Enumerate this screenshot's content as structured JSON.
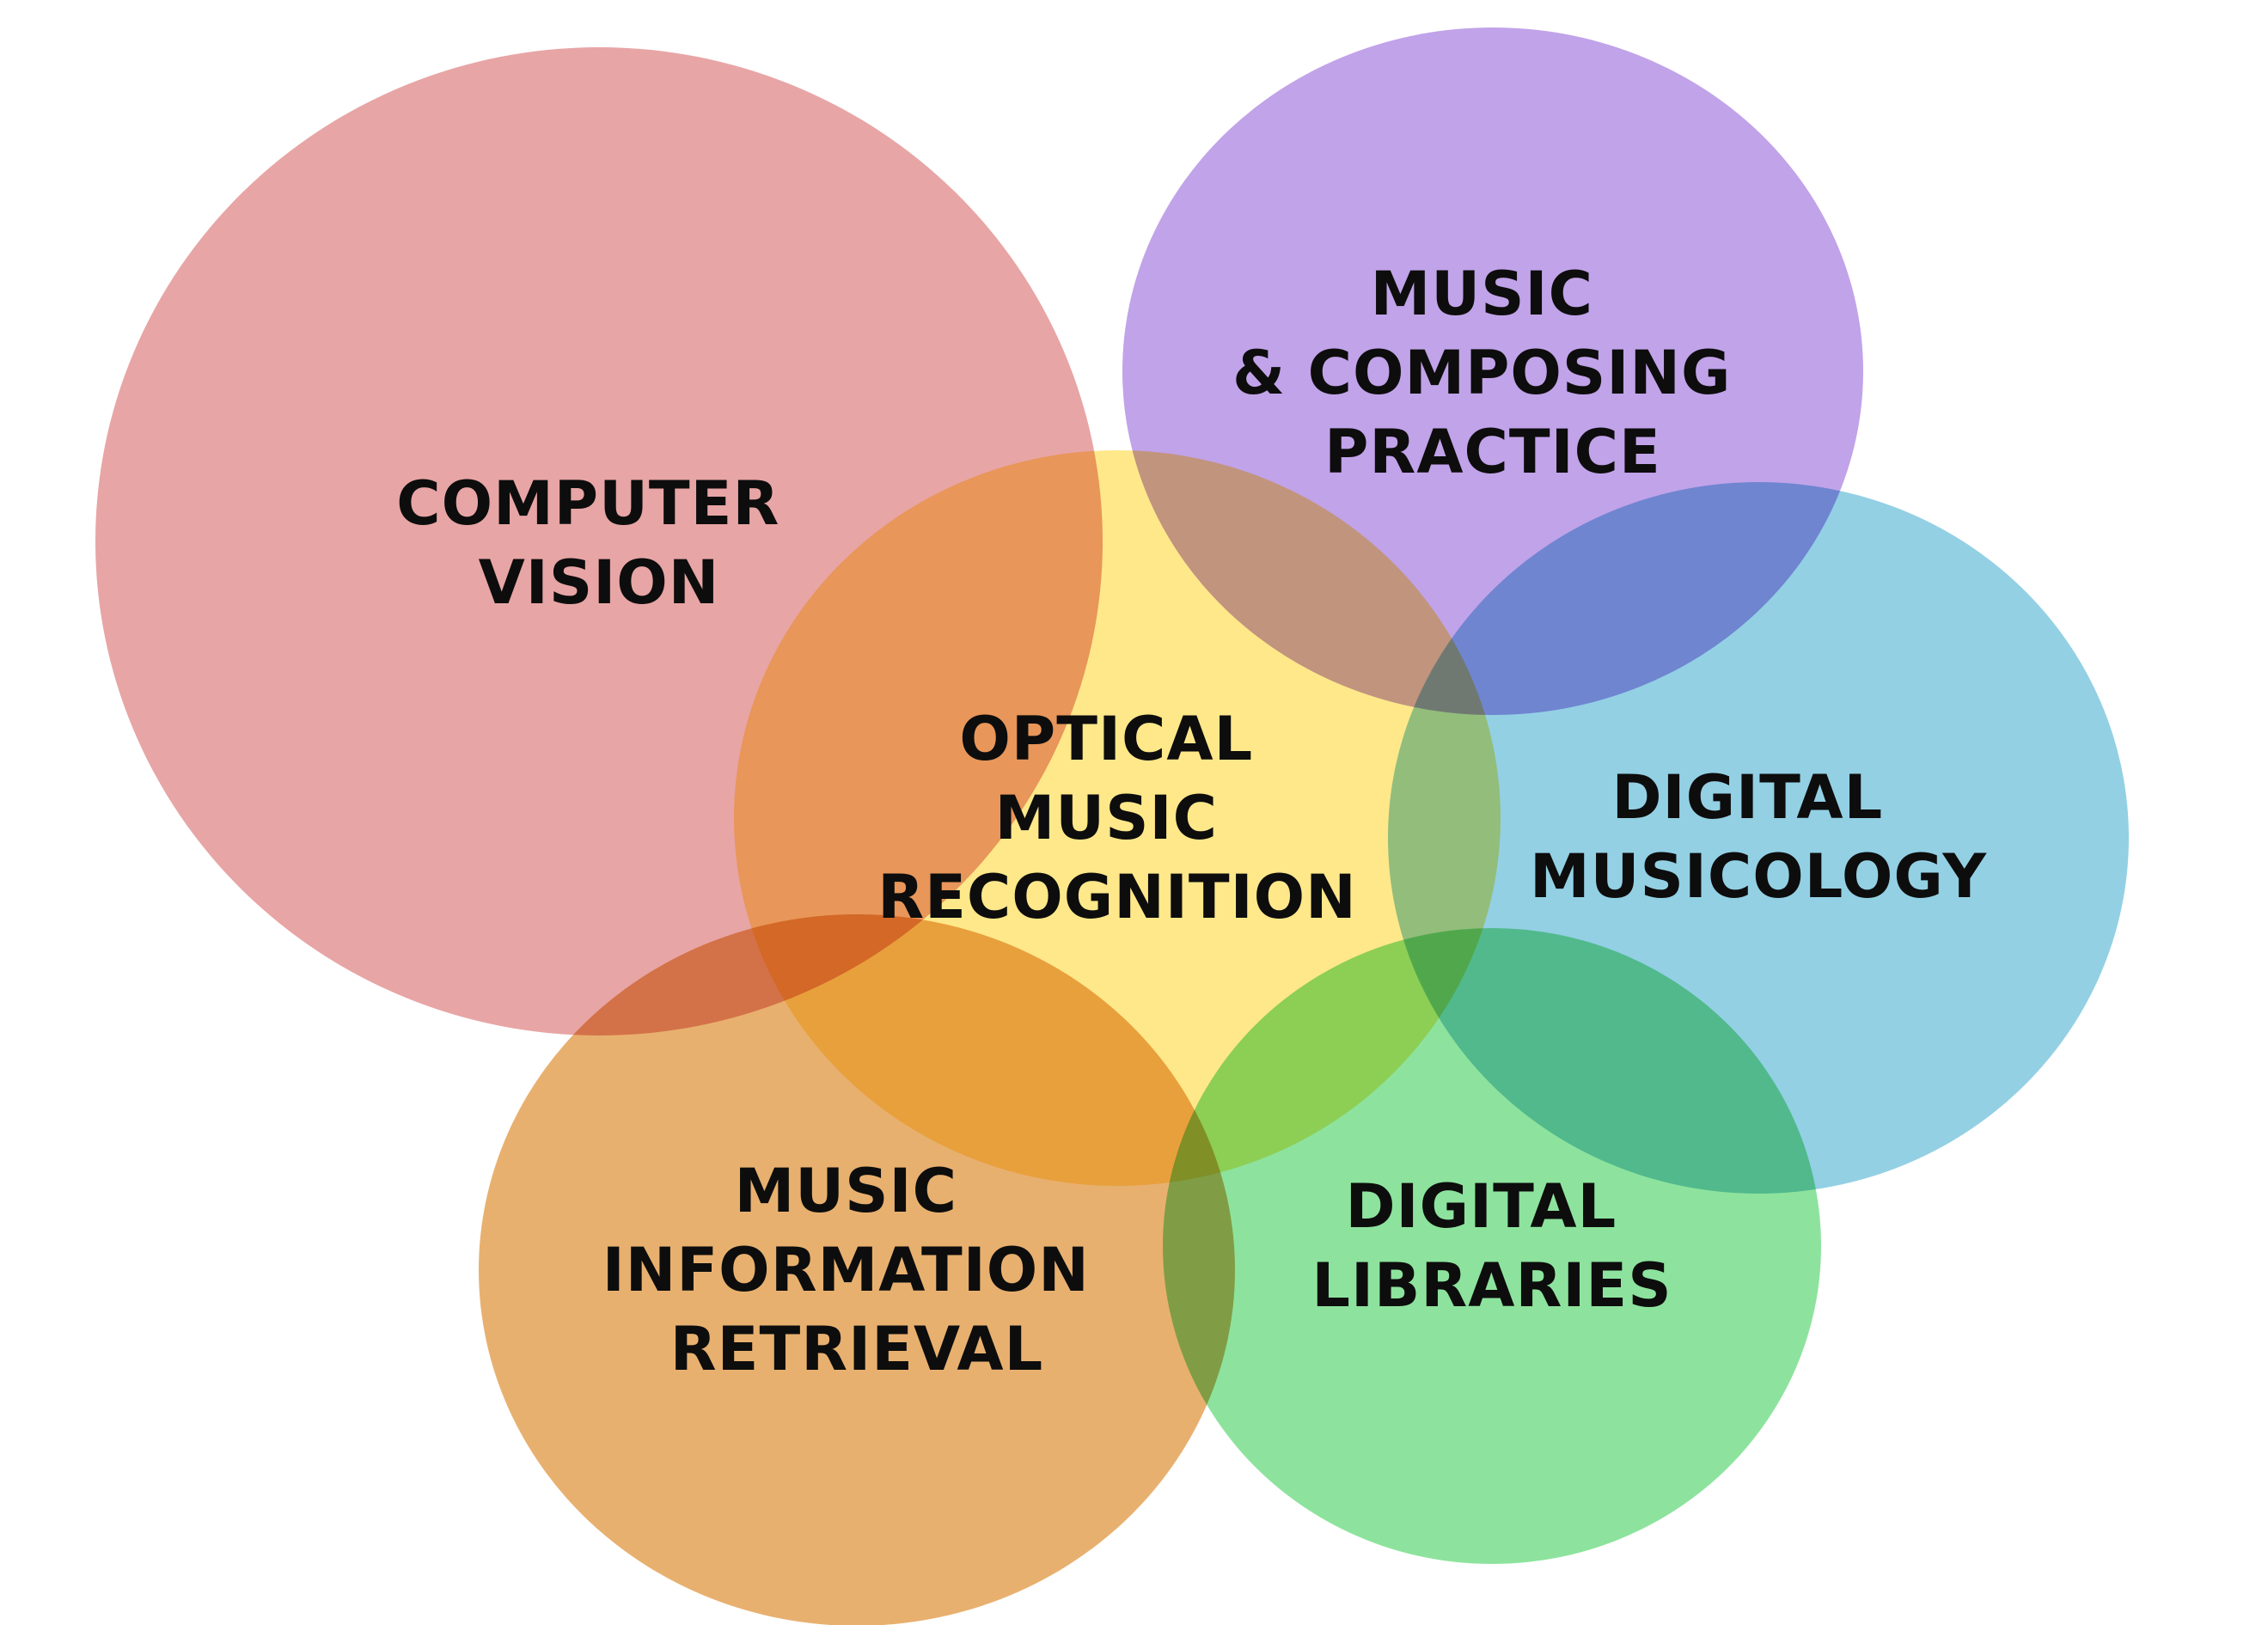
{
  "colors": {
    "computer_vision": "#E8A5A5",
    "music_composing": "#C1A3E9",
    "digital_musicology": "#93D0E4",
    "digital_libraries": "#8DE39D",
    "music_information_retrieval": "#E8B06F",
    "optical_music_recognition": "#FFE88A",
    "text": "#0D0D0D"
  },
  "circles": [
    {
      "id": "computer_vision",
      "lines": [
        "COMPUTER",
        "VISION"
      ]
    },
    {
      "id": "music_composing",
      "lines": [
        "MUSIC",
        "& COMPOSING",
        "PRACTICE"
      ]
    },
    {
      "id": "digital_musicology",
      "lines": [
        "DIGITAL",
        "MUSICOLOGY"
      ]
    },
    {
      "id": "digital_libraries",
      "lines": [
        "DIGITAL",
        "LIBRARIES"
      ]
    },
    {
      "id": "music_information_retrieval",
      "lines": [
        "MUSIC",
        "INFORMATION",
        "RETRIEVAL"
      ]
    },
    {
      "id": "optical_music_recognition",
      "lines": [
        "OPTICAL",
        "MUSIC",
        "RECOGNITION"
      ]
    }
  ]
}
